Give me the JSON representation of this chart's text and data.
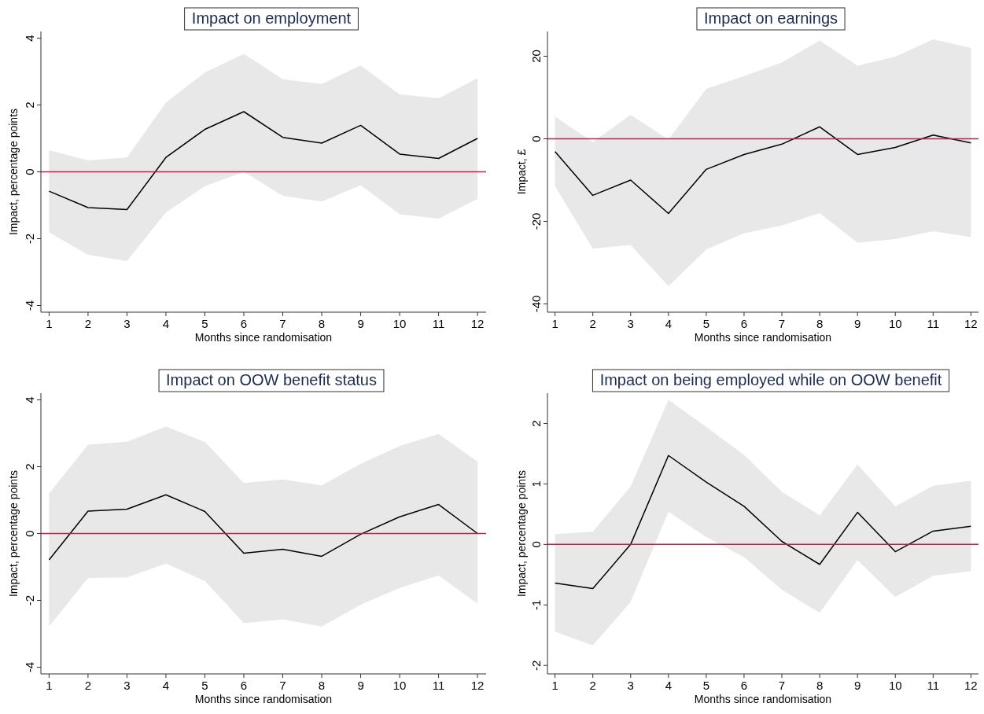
{
  "chart_data": [
    {
      "type": "line",
      "title": "Impact on employment",
      "xlabel": "Months since randomisation",
      "ylabel": "Impact, percentage points",
      "x": [
        1,
        2,
        3,
        4,
        5,
        6,
        7,
        8,
        9,
        10,
        11,
        12
      ],
      "xlim": [
        0.79,
        12.22
      ],
      "xticks": [
        1,
        2,
        3,
        4,
        5,
        6,
        7,
        8,
        9,
        10,
        11,
        12
      ],
      "ylim": [
        -4.2,
        4.2
      ],
      "yticks": [
        -4,
        -2,
        0,
        2,
        4
      ],
      "grid": false,
      "marker": "none",
      "line_style": "solid",
      "series": [
        {
          "color": "#000000",
          "values": [
            -0.58,
            -1.07,
            -1.13,
            0.43,
            1.27,
            1.8,
            1.03,
            0.86,
            1.39,
            0.53,
            0.4,
            1.0
          ],
          "lower": [
            -1.81,
            -2.48,
            -2.67,
            -1.22,
            -0.43,
            0.0,
            -0.72,
            -0.89,
            -0.4,
            -1.27,
            -1.4,
            -0.81
          ],
          "upper": [
            0.65,
            0.34,
            0.43,
            2.07,
            2.97,
            3.53,
            2.77,
            2.63,
            3.18,
            2.32,
            2.2,
            2.8
          ]
        }
      ],
      "ref_lines": [
        {
          "axis": "y",
          "value": 0,
          "color": "#b8234a"
        }
      ]
    },
    {
      "type": "line",
      "title": "Impact on earnings",
      "xlabel": "Months since randomisation",
      "ylabel": "Impact, £",
      "x": [
        1,
        2,
        3,
        4,
        5,
        6,
        7,
        8,
        9,
        10,
        11,
        12
      ],
      "xlim": [
        0.8,
        12.2
      ],
      "xticks": [
        1,
        2,
        3,
        4,
        5,
        6,
        7,
        8,
        9,
        10,
        11,
        12
      ],
      "ylim": [
        -42,
        26
      ],
      "yticks": [
        -40,
        -20,
        0,
        20
      ],
      "grid": false,
      "marker": "none",
      "line_style": "solid",
      "series": [
        {
          "color": "#000000",
          "values": [
            -3.1,
            -13.7,
            -10,
            -18.1,
            -7.4,
            -3.8,
            -1.3,
            2.9,
            -3.8,
            -2.1,
            0.9,
            -1.0
          ],
          "lower": [
            -11.5,
            -26.6,
            -25.7,
            -35.7,
            -26.8,
            -22.9,
            -21,
            -18,
            -25.2,
            -24.3,
            -22.4,
            -23.8
          ],
          "upper": [
            5.4,
            -0.8,
            5.8,
            -0.2,
            12.1,
            15.2,
            18.5,
            23.8,
            17.7,
            19.9,
            24.1,
            22.0
          ]
        }
      ],
      "ref_lines": [
        {
          "axis": "y",
          "value": 0,
          "color": "#b8234a"
        }
      ]
    },
    {
      "type": "line",
      "title": "Impact on OOW benefit status",
      "xlabel": "Months since randomisation",
      "ylabel": "Impact, percentage points",
      "x": [
        1,
        2,
        3,
        4,
        5,
        6,
        7,
        8,
        9,
        10,
        11,
        12
      ],
      "xlim": [
        0.79,
        12.22
      ],
      "xticks": [
        1,
        2,
        3,
        4,
        5,
        6,
        7,
        8,
        9,
        10,
        11,
        12
      ],
      "ylim": [
        -4.2,
        4.2
      ],
      "yticks": [
        -4,
        -2,
        0,
        2,
        4
      ],
      "grid": false,
      "marker": "none",
      "line_style": "solid",
      "series": [
        {
          "color": "#000000",
          "values": [
            -0.79,
            0.67,
            0.73,
            1.16,
            0.66,
            -0.59,
            -0.47,
            -0.68,
            -0.02,
            0.5,
            0.87,
            0.0
          ],
          "lower": [
            -2.78,
            -1.33,
            -1.31,
            -0.9,
            -1.42,
            -2.68,
            -2.57,
            -2.78,
            -2.13,
            -1.63,
            -1.25,
            -2.1
          ],
          "upper": [
            1.2,
            2.66,
            2.75,
            3.2,
            2.74,
            1.51,
            1.62,
            1.44,
            2.09,
            2.62,
            2.98,
            2.15
          ]
        }
      ],
      "ref_lines": [
        {
          "axis": "y",
          "value": 0,
          "color": "#b8234a"
        }
      ]
    },
    {
      "type": "line",
      "title": "Impact on being employed while on OOW benefit",
      "xlabel": "Months since randomisation",
      "ylabel": "Impact, percentage points",
      "x": [
        1,
        2,
        3,
        4,
        5,
        6,
        7,
        8,
        9,
        10,
        11,
        12
      ],
      "xlim": [
        0.8,
        12.2
      ],
      "xticks": [
        1,
        2,
        3,
        4,
        5,
        6,
        7,
        8,
        9,
        10,
        11,
        12
      ],
      "ylim": [
        -2.14,
        2.5
      ],
      "yticks": [
        -2,
        -1,
        0,
        1,
        2
      ],
      "grid": false,
      "marker": "none",
      "line_style": "solid",
      "series": [
        {
          "color": "#000000",
          "values": [
            -0.64,
            -0.73,
            0,
            1.47,
            1.03,
            0.63,
            0.05,
            -0.33,
            0.53,
            -0.12,
            0.22,
            0.3
          ],
          "lower": [
            -1.44,
            -1.67,
            -0.95,
            0.54,
            0.12,
            -0.21,
            -0.75,
            -1.13,
            -0.26,
            -0.87,
            -0.52,
            -0.44
          ],
          "upper": [
            0.17,
            0.21,
            0.96,
            2.39,
            1.94,
            1.48,
            0.87,
            0.48,
            1.32,
            0.63,
            0.97,
            1.05
          ]
        }
      ],
      "ref_lines": [
        {
          "axis": "y",
          "value": 0,
          "color": "#b8234a"
        }
      ]
    }
  ]
}
